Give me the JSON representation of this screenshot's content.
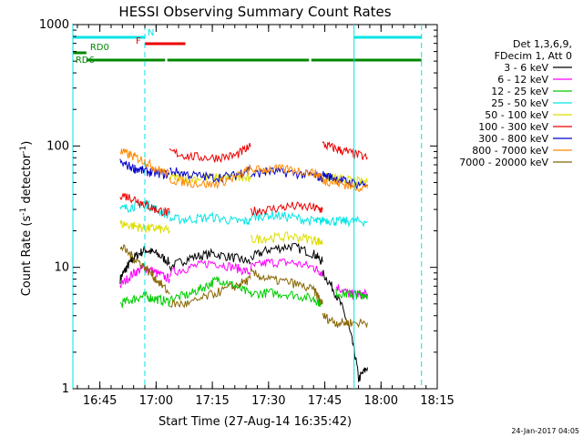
{
  "chart_data": {
    "type": "line",
    "title": "HESSI Observing Summary Count Rates",
    "xlabel": "Start Time (27-Aug-14 16:35:42)",
    "ylabel_main": "Count Rate (s",
    "ylabel_sup1": "-1",
    "ylabel_mid": " detector",
    "ylabel_sup2": "-1",
    "ylabel_end": ")",
    "yscale": "log",
    "ylim": [
      1,
      1000
    ],
    "xlim_minutes": [
      16.63,
      18.25
    ],
    "y_ticks": [
      {
        "value": 1,
        "label": "1"
      },
      {
        "value": 10,
        "label": "10"
      },
      {
        "value": 100,
        "label": "100"
      },
      {
        "value": 1000,
        "label": "1000"
      }
    ],
    "x_ticks": [
      {
        "value": 16.75,
        "label": "16:45"
      },
      {
        "value": 17.0,
        "label": "17:00"
      },
      {
        "value": 17.25,
        "label": "17:15"
      },
      {
        "value": 17.5,
        "label": "17:30"
      },
      {
        "value": 17.75,
        "label": "17:45"
      },
      {
        "value": 18.0,
        "label": "18:00"
      },
      {
        "value": 18.25,
        "label": "18:15"
      }
    ],
    "legend_header": [
      "Det 1,3,6,9,",
      "FDecim 1, Att 0"
    ],
    "series": [
      {
        "name": "3 - 6 keV",
        "color": "#000000",
        "segments": [
          {
            "x": [
              16.84,
              16.87,
              16.9,
              16.95,
              17.0,
              17.06
            ],
            "y": [
              8,
              10,
              12,
              14,
              13,
              11
            ]
          },
          {
            "x": [
              17.06,
              17.15,
              17.25,
              17.35,
              17.42
            ],
            "y": [
              10,
              12,
              13,
              12,
              11
            ]
          },
          {
            "x": [
              17.42,
              17.5,
              17.6,
              17.7,
              17.74
            ],
            "y": [
              12,
              14,
              15,
              13,
              11
            ]
          },
          {
            "x": [
              17.74,
              17.8,
              17.86,
              17.9,
              17.94
            ],
            "y": [
              9,
              6,
              3,
              1.2,
              1.5
            ]
          }
        ]
      },
      {
        "name": "6 - 12 keV",
        "color": "#ff00ff",
        "segments": [
          {
            "x": [
              16.84,
              16.9,
              16.95,
              17.0,
              17.06
            ],
            "y": [
              7,
              9,
              10,
              9,
              8
            ]
          },
          {
            "x": [
              17.06,
              17.15,
              17.25,
              17.35,
              17.42
            ],
            "y": [
              9,
              10,
              11,
              10,
              9
            ]
          },
          {
            "x": [
              17.42,
              17.5,
              17.6,
              17.7,
              17.74
            ],
            "y": [
              10,
              11,
              11,
              10,
              9
            ]
          },
          {
            "x": [
              17.8,
              17.86,
              17.9,
              17.94
            ],
            "y": [
              7,
              6,
              6,
              6
            ]
          }
        ]
      },
      {
        "name": "12 - 25 keV",
        "color": "#00cc00",
        "segments": [
          {
            "x": [
              16.84,
              16.9,
              16.95,
              17.0,
              17.06
            ],
            "y": [
              5,
              5.5,
              5.8,
              5.5,
              5.2
            ]
          },
          {
            "x": [
              17.06,
              17.15,
              17.22,
              17.28,
              17.35,
              17.42
            ],
            "y": [
              5.5,
              6,
              7,
              8,
              7,
              6
            ]
          },
          {
            "x": [
              17.42,
              17.5,
              17.6,
              17.7,
              17.74
            ],
            "y": [
              6,
              6.2,
              6,
              5.5,
              5
            ]
          },
          {
            "x": [
              17.8,
              17.86,
              17.9,
              17.94
            ],
            "y": [
              6.2,
              6,
              6,
              6
            ]
          }
        ]
      },
      {
        "name": "25 - 50 keV",
        "color": "#00e5e5",
        "segments": [
          {
            "x": [
              16.84,
              16.9,
              16.95,
              17.0,
              17.06
            ],
            "y": [
              30,
              32,
              34,
              30,
              27
            ]
          },
          {
            "x": [
              17.06,
              17.15,
              17.25,
              17.35,
              17.42
            ],
            "y": [
              25,
              25,
              26,
              24,
              24
            ]
          },
          {
            "x": [
              17.42,
              17.5,
              17.6,
              17.7,
              17.74
            ],
            "y": [
              26,
              27,
              26,
              24,
              24
            ]
          },
          {
            "x": [
              17.74,
              17.8,
              17.86,
              17.94
            ],
            "y": [
              25,
              24,
              24,
              24
            ]
          }
        ]
      },
      {
        "name": "50 - 100 keV",
        "color": "#dddd00",
        "segments": [
          {
            "x": [
              16.84,
              16.9,
              16.95,
              17.0,
              17.06
            ],
            "y": [
              23,
              22,
              21,
              21,
              20
            ]
          },
          {
            "x": [
              17.06,
              17.15,
              17.25,
              17.35,
              17.42
            ],
            "y": [
              55,
              54,
              55,
              55,
              53
            ]
          },
          {
            "x": [
              17.42,
              17.5,
              17.6,
              17.7,
              17.74
            ],
            "y": [
              17,
              17.5,
              18,
              17,
              16
            ]
          },
          {
            "x": [
              17.74,
              17.8,
              17.86,
              17.94
            ],
            "y": [
              55,
              54,
              52,
              50
            ]
          }
        ]
      },
      {
        "name": "100 - 300 keV",
        "color": "#ee0000",
        "segments": [
          {
            "x": [
              16.84,
              16.9,
              16.95,
              17.0,
              17.06
            ],
            "y": [
              40,
              37,
              33,
              30,
              28
            ]
          },
          {
            "x": [
              17.06,
              17.15,
              17.25,
              17.35,
              17.42
            ],
            "y": [
              90,
              82,
              80,
              83,
              98
            ]
          },
          {
            "x": [
              17.42,
              17.5,
              17.6,
              17.7,
              17.74
            ],
            "y": [
              29,
              30,
              32,
              31,
              30
            ]
          },
          {
            "x": [
              17.74,
              17.8,
              17.86,
              17.94
            ],
            "y": [
              103,
              95,
              88,
              80
            ]
          }
        ]
      },
      {
        "name": "300 - 800 keV",
        "color": "#0000cc",
        "segments": [
          {
            "x": [
              16.84,
              16.9,
              16.95,
              17.0,
              17.06
            ],
            "y": [
              73,
              66,
              62,
              60,
              58
            ]
          },
          {
            "x": [
              17.06,
              17.15,
              17.25,
              17.35,
              17.42
            ],
            "y": [
              63,
              58,
              55,
              57,
              66
            ]
          },
          {
            "x": [
              17.42,
              17.5,
              17.6,
              17.7,
              17.74
            ],
            "y": [
              58,
              62,
              60,
              57,
              55
            ]
          },
          {
            "x": [
              17.74,
              17.8,
              17.86,
              17.94
            ],
            "y": [
              58,
              54,
              50,
              48
            ]
          }
        ]
      },
      {
        "name": "800 - 7000 keV",
        "color": "#ff8800",
        "segments": [
          {
            "x": [
              16.84,
              16.9,
              16.95,
              17.0,
              17.06
            ],
            "y": [
              90,
              82,
              75,
              65,
              58
            ]
          },
          {
            "x": [
              17.06,
              17.15,
              17.25,
              17.35,
              17.42
            ],
            "y": [
              53,
              50,
              48,
              55,
              64
            ]
          },
          {
            "x": [
              17.42,
              17.5,
              17.6,
              17.7,
              17.74
            ],
            "y": [
              63,
              65,
              64,
              60,
              56
            ]
          },
          {
            "x": [
              17.74,
              17.8,
              17.86,
              17.94
            ],
            "y": [
              52,
              50,
              47,
              45
            ]
          }
        ]
      },
      {
        "name": "7000 - 20000 keV",
        "color": "#886600",
        "segments": [
          {
            "x": [
              16.84,
              16.9,
              16.95,
              17.0,
              17.06
            ],
            "y": [
              15,
              12,
              10,
              8,
              6
            ]
          },
          {
            "x": [
              17.06,
              17.15,
              17.25,
              17.35,
              17.42
            ],
            "y": [
              5,
              5,
              6,
              7,
              8
            ]
          },
          {
            "x": [
              17.42,
              17.5,
              17.6,
              17.7,
              17.74
            ],
            "y": [
              9,
              8,
              7.5,
              6.5,
              5
            ]
          },
          {
            "x": [
              17.74,
              17.8,
              17.86,
              17.94
            ],
            "y": [
              4,
              3.5,
              3.5,
              3.5
            ]
          }
        ]
      }
    ],
    "flags": [
      {
        "label": "N",
        "color": "#00e5e5",
        "bars": [
          [
            16.63,
            16.95
          ],
          [
            17.88,
            18.18
          ]
        ]
      },
      {
        "label": "F",
        "color": "#ee0000",
        "bars": [
          [
            16.95,
            17.13
          ]
        ]
      },
      {
        "label": "RD0",
        "color": "#008800",
        "bars": [
          [
            16.63,
            16.69
          ]
        ]
      },
      {
        "label": "RD6",
        "color": "#008800",
        "bars": [
          [
            16.69,
            17.04
          ],
          [
            17.05,
            17.44
          ],
          [
            17.44,
            17.68
          ],
          [
            17.69,
            18.18
          ]
        ]
      }
    ],
    "vlines_solid": [
      16.63,
      17.88
    ],
    "vlines_dashed": [
      16.95,
      18.18
    ],
    "timestamp": "24-Jan-2017 04:05"
  }
}
